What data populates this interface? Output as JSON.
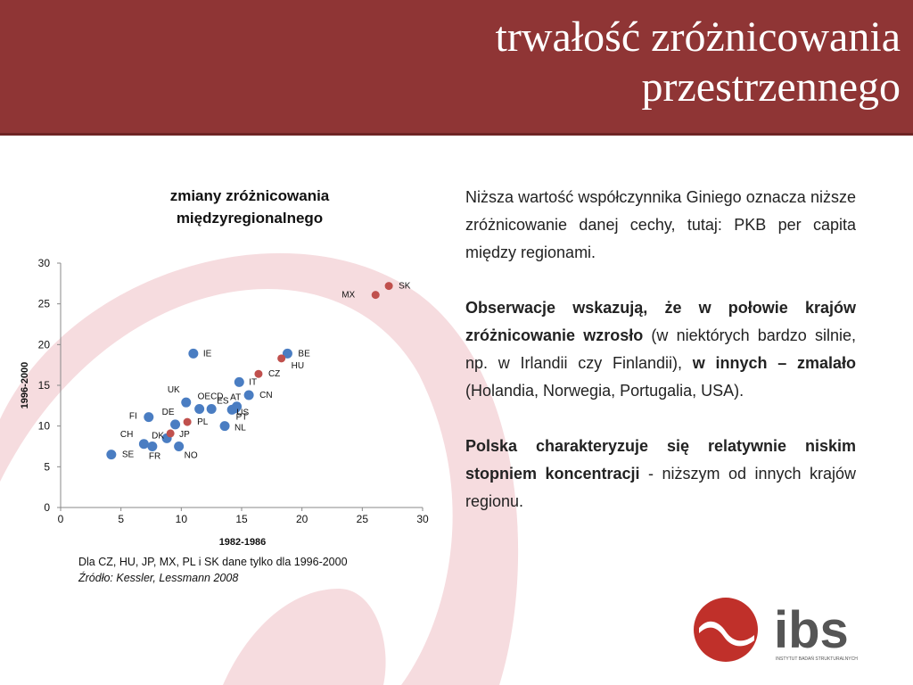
{
  "header": {
    "title_line1": "trwałość zróżnicowania",
    "title_line2": "przestrzennego"
  },
  "chart_title": {
    "line1": "zmiany zróżnicowania",
    "line2": "międzyregionalnego"
  },
  "chart_data": {
    "type": "scatter",
    "title": "zmiany zróżnicowania międzyregionalnego",
    "xlabel": "1982-1986",
    "ylabel": "1996-2000",
    "xlim": [
      0,
      30
    ],
    "ylim": [
      0,
      30
    ],
    "xticks": [
      0,
      5,
      10,
      15,
      20,
      25,
      30
    ],
    "yticks": [
      0,
      5,
      10,
      15,
      20,
      25,
      30
    ],
    "grid": false,
    "series": [
      {
        "color": "#4a7dc2",
        "points": [
          {
            "label": "SE",
            "x": 4.2,
            "y": 6.5
          },
          {
            "label": "CH",
            "x": 6.9,
            "y": 7.8
          },
          {
            "label": "FR",
            "x": 7.6,
            "y": 7.5
          },
          {
            "label": "FI",
            "x": 7.3,
            "y": 11.1
          },
          {
            "label": "DK",
            "x": 8.8,
            "y": 8.5
          },
          {
            "label": "DE",
            "x": 9.5,
            "y": 10.2
          },
          {
            "label": "NO",
            "x": 9.8,
            "y": 7.5
          },
          {
            "label": "UK",
            "x": 10.4,
            "y": 12.9
          },
          {
            "label": "OECD",
            "x": 11.5,
            "y": 12.1
          },
          {
            "label": "ES",
            "x": 12.5,
            "y": 12.1
          },
          {
            "label": "NL",
            "x": 13.6,
            "y": 10.0
          },
          {
            "label": "AT",
            "x": 14.2,
            "y": 12.0
          },
          {
            "label": "PT",
            "x": 14.6,
            "y": 12.4
          },
          {
            "label": "IT",
            "x": 14.8,
            "y": 15.4
          },
          {
            "label": "CN",
            "x": 15.6,
            "y": 13.8
          },
          {
            "label": "US",
            "x": 14.5,
            "y": 12.2
          },
          {
            "label": "IE",
            "x": 11.0,
            "y": 18.9
          },
          {
            "label": "BE",
            "x": 18.8,
            "y": 18.9
          }
        ]
      },
      {
        "color": "#c0504d",
        "points": [
          {
            "label": "JP",
            "x": 9.1,
            "y": 9.1
          },
          {
            "label": "PL",
            "x": 10.5,
            "y": 10.5
          },
          {
            "label": "CZ",
            "x": 16.4,
            "y": 16.4
          },
          {
            "label": "HU",
            "x": 18.3,
            "y": 18.3
          },
          {
            "label": "MX",
            "x": 26.1,
            "y": 26.1
          },
          {
            "label": "SK",
            "x": 27.2,
            "y": 27.2
          }
        ]
      }
    ]
  },
  "notes": {
    "line1": "Dla CZ, HU, JP, MX, PL i SK dane tylko dla 1996-2000",
    "source": "Źródło: Kessler, Lessmann 2008"
  },
  "text": {
    "p1": "Niższa wartość współczynnika Giniego oznacza niższe zróżnicowanie danej cechy, tutaj: PKB per capita między regionami.",
    "p2_bold1": "Obserwacje wskazują, że w połowie krajów zróżnicowanie wzrosło",
    "p2_part2": " (w niektórych bardzo silnie, np. w Irlandii czy Finlandii), ",
    "p2_bold2": "w innych – zmalało",
    "p2_part3": " (Holandia, Norwegia, Portugalia, USA).",
    "p3_bold": "Polska charakteryzuje się relatywnie niskim stopniem koncentracji",
    "p3_rest": " - niższym od innych krajów regionu."
  },
  "logo": {
    "text": "ibs",
    "subtitle": "INSTYTUT BADAŃ STRUKTURALNYCH",
    "color": "#c0302a"
  },
  "colors": {
    "header": "#8f3535",
    "swirl": "#f6dcdf"
  }
}
